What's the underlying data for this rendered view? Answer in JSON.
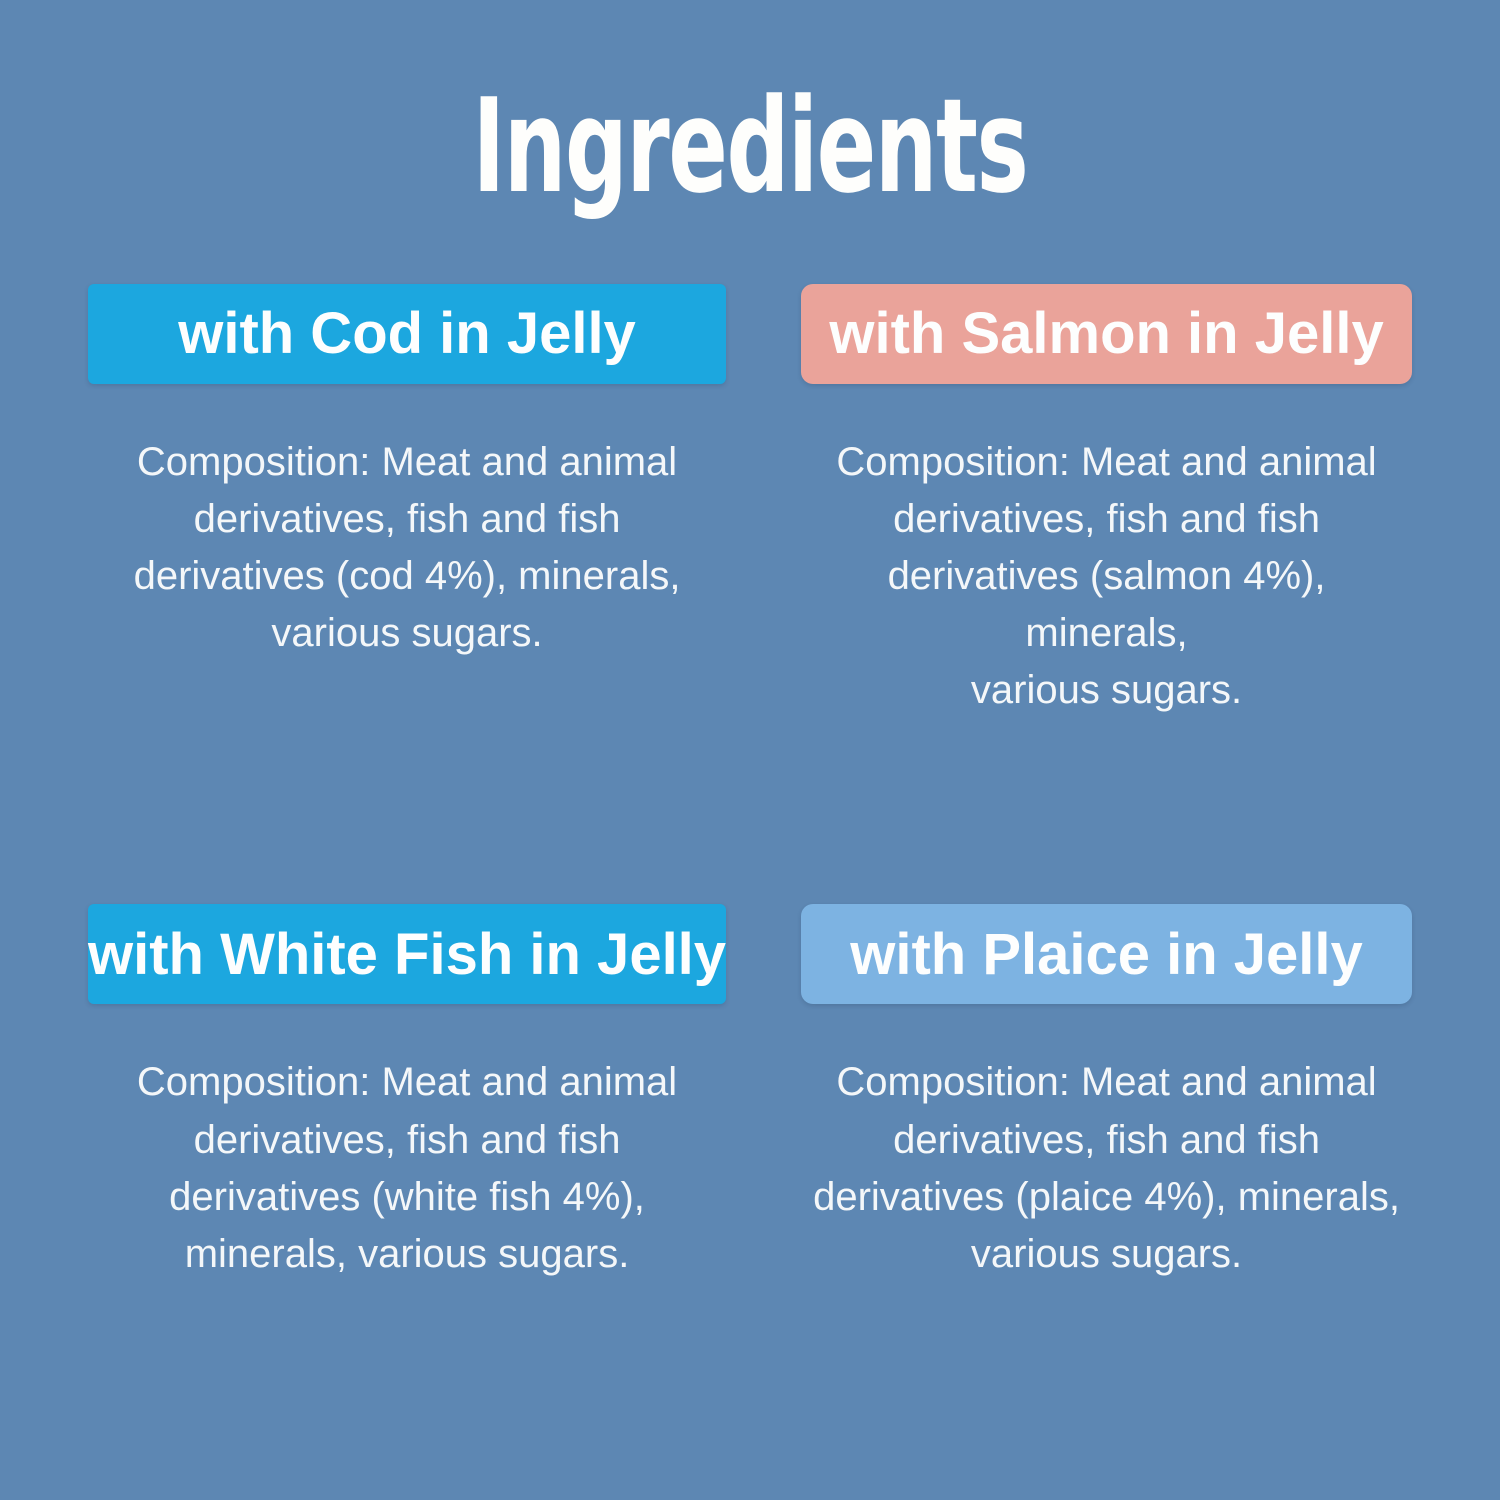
{
  "page": {
    "title": "Ingredients",
    "background_color": "#5D87B3",
    "title_color": "#FFFFFF",
    "body_text_color": "#F4F7F9"
  },
  "sections": [
    {
      "id": "cod-in-jelly",
      "header_label": "with Cod in Jelly",
      "header_color": "#1CA7DF",
      "composition": "Composition: Meat and animal\nderivatives, fish and fish\nderivatives (cod 4%), minerals,\nvarious sugars."
    },
    {
      "id": "salmon-in-jelly",
      "header_label": "with Salmon in Jelly",
      "header_color": "#EAA39A",
      "composition": "Composition: Meat and animal\nderivatives, fish and fish\nderivatives (salmon 4%), minerals,\nvarious sugars."
    },
    {
      "id": "white-fish-in-jelly",
      "header_label": "with White Fish in Jelly",
      "header_color": "#1CA7DF",
      "composition": "Composition: Meat and animal\nderivatives, fish and fish\nderivatives (white fish 4%),\nminerals, various sugars."
    },
    {
      "id": "plaice-in-jelly",
      "header_label": "with Plaice in Jelly",
      "header_color": "#7DB3E2",
      "composition": "Composition: Meat and animal\nderivatives, fish and fish\nderivatives (plaice 4%), minerals,\nvarious sugars."
    }
  ]
}
